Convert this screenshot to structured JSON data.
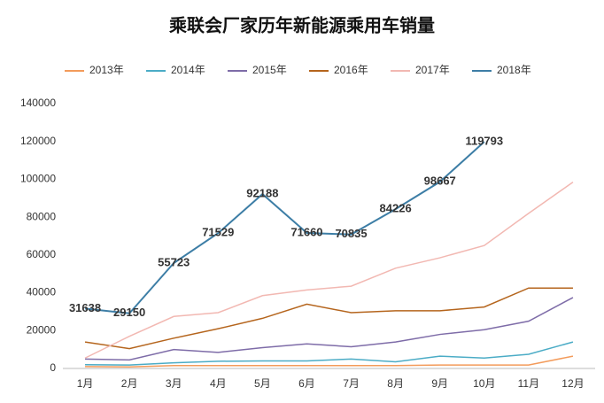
{
  "chart_data": {
    "type": "line",
    "title": "乘联会厂家历年新能源乘用车销量",
    "categories": [
      "1月",
      "2月",
      "3月",
      "4月",
      "5月",
      "6月",
      "7月",
      "8月",
      "9月",
      "10月",
      "11月",
      "12月"
    ],
    "series": [
      {
        "name": "2013年",
        "color": "#f39b5b",
        "values": [
          1000,
          800,
          1500,
          1500,
          1500,
          1500,
          1500,
          1500,
          1800,
          1800,
          1800,
          6500
        ]
      },
      {
        "name": "2014年",
        "color": "#4bacc6",
        "values": [
          2000,
          1800,
          3000,
          3800,
          4000,
          4000,
          5000,
          3500,
          6500,
          5500,
          7500,
          14000
        ]
      },
      {
        "name": "2015年",
        "color": "#7e6ca8",
        "values": [
          5000,
          4500,
          10000,
          8500,
          11000,
          13000,
          11500,
          14000,
          18000,
          20500,
          25000,
          37500
        ]
      },
      {
        "name": "2016年",
        "color": "#b5651d",
        "values": [
          14000,
          10500,
          16000,
          21000,
          26500,
          34000,
          29500,
          30500,
          30500,
          32500,
          42500,
          42500
        ]
      },
      {
        "name": "2017年",
        "color": "#f2b8b2",
        "values": [
          5500,
          17000,
          27500,
          29500,
          38500,
          41500,
          43500,
          53000,
          58500,
          65000,
          82000,
          98500
        ]
      },
      {
        "name": "2018年",
        "color": "#3d7ea6",
        "values": [
          31638,
          29150,
          55723,
          71529,
          92188,
          71660,
          70835,
          84226,
          98667,
          119793,
          null,
          null
        ],
        "data_labels": true
      }
    ],
    "ylim": [
      0,
      140000
    ],
    "yticks": [
      0,
      20000,
      40000,
      60000,
      80000,
      100000,
      120000,
      140000
    ],
    "legend": "top",
    "data_label_color": "#3b7a2a"
  }
}
